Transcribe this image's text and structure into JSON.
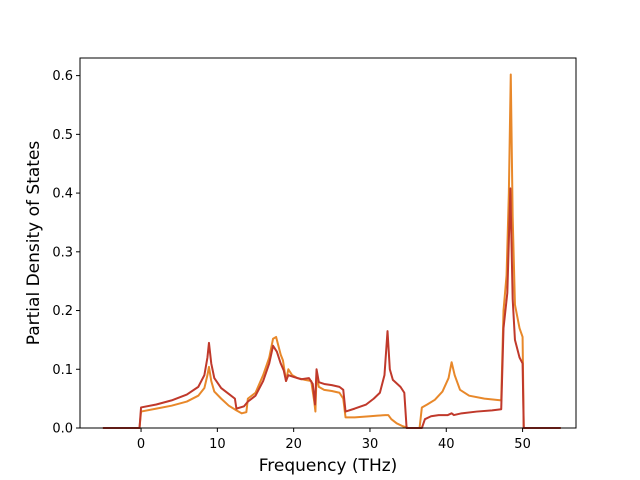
{
  "chart_data": {
    "type": "line",
    "xlabel": "Frequency (THz)",
    "ylabel": "Partial Density of States",
    "xlim": [
      -8,
      57
    ],
    "ylim": [
      0,
      0.63
    ],
    "x_ticks": [
      "0",
      "10",
      "20",
      "30",
      "40",
      "50"
    ],
    "y_ticks": [
      "0.0",
      "0.1",
      "0.2",
      "0.3",
      "0.4",
      "0.5",
      "0.6"
    ],
    "grid": false,
    "legend": false,
    "series": [
      {
        "color": "#e8882a",
        "points": [
          [
            -5,
            0
          ],
          [
            -0.2,
            0
          ],
          [
            0,
            0.028
          ],
          [
            2,
            0.033
          ],
          [
            4,
            0.038
          ],
          [
            6,
            0.045
          ],
          [
            7.5,
            0.055
          ],
          [
            8.3,
            0.068
          ],
          [
            8.7,
            0.09
          ],
          [
            8.9,
            0.104
          ],
          [
            9.2,
            0.08
          ],
          [
            9.6,
            0.062
          ],
          [
            10.5,
            0.05
          ],
          [
            11.5,
            0.038
          ],
          [
            12.5,
            0.03
          ],
          [
            13.2,
            0.025
          ],
          [
            13.8,
            0.027
          ],
          [
            14,
            0.05
          ],
          [
            15,
            0.06
          ],
          [
            16,
            0.09
          ],
          [
            16.8,
            0.12
          ],
          [
            17.3,
            0.152
          ],
          [
            17.7,
            0.155
          ],
          [
            18.3,
            0.125
          ],
          [
            18.6,
            0.115
          ],
          [
            19,
            0.08
          ],
          [
            19.3,
            0.1
          ],
          [
            19.8,
            0.09
          ],
          [
            20.5,
            0.085
          ],
          [
            21.5,
            0.082
          ],
          [
            22.3,
            0.08
          ],
          [
            22.7,
            0.045
          ],
          [
            22.85,
            0.028
          ],
          [
            23,
            0.09
          ],
          [
            23.3,
            0.07
          ],
          [
            24,
            0.065
          ],
          [
            25,
            0.063
          ],
          [
            26,
            0.06
          ],
          [
            26.5,
            0.05
          ],
          [
            26.8,
            0.018
          ],
          [
            28,
            0.018
          ],
          [
            30,
            0.02
          ],
          [
            31,
            0.021
          ],
          [
            32,
            0.022
          ],
          [
            32.4,
            0.022
          ],
          [
            32.8,
            0.015
          ],
          [
            33.5,
            0.008
          ],
          [
            34.3,
            0.003
          ],
          [
            35,
            0
          ],
          [
            36.5,
            0
          ],
          [
            36.8,
            0.035
          ],
          [
            37.5,
            0.04
          ],
          [
            38.5,
            0.048
          ],
          [
            39.5,
            0.062
          ],
          [
            40.3,
            0.085
          ],
          [
            40.7,
            0.112
          ],
          [
            41.1,
            0.09
          ],
          [
            41.8,
            0.065
          ],
          [
            43,
            0.055
          ],
          [
            45,
            0.05
          ],
          [
            47.2,
            0.047
          ],
          [
            47.5,
            0.2
          ],
          [
            47.9,
            0.26
          ],
          [
            48.2,
            0.4
          ],
          [
            48.45,
            0.602
          ],
          [
            48.7,
            0.36
          ],
          [
            49,
            0.21
          ],
          [
            49.6,
            0.17
          ],
          [
            50,
            0.155
          ],
          [
            50.15,
            0
          ],
          [
            52,
            0
          ],
          [
            55,
            0
          ]
        ]
      },
      {
        "color": "#c0392b",
        "points": [
          [
            -5,
            0
          ],
          [
            -0.2,
            0
          ],
          [
            0,
            0.035
          ],
          [
            2,
            0.04
          ],
          [
            4,
            0.047
          ],
          [
            6,
            0.057
          ],
          [
            7.5,
            0.07
          ],
          [
            8.3,
            0.09
          ],
          [
            8.7,
            0.12
          ],
          [
            8.9,
            0.145
          ],
          [
            9.2,
            0.11
          ],
          [
            9.6,
            0.085
          ],
          [
            10.5,
            0.068
          ],
          [
            11.5,
            0.058
          ],
          [
            12.3,
            0.05
          ],
          [
            12.5,
            0.033
          ],
          [
            13.5,
            0.037
          ],
          [
            14,
            0.045
          ],
          [
            15,
            0.055
          ],
          [
            16,
            0.08
          ],
          [
            16.8,
            0.11
          ],
          [
            17.3,
            0.14
          ],
          [
            17.8,
            0.13
          ],
          [
            18.3,
            0.11
          ],
          [
            18.7,
            0.098
          ],
          [
            19,
            0.08
          ],
          [
            19.3,
            0.09
          ],
          [
            20,
            0.087
          ],
          [
            21,
            0.083
          ],
          [
            22,
            0.085
          ],
          [
            22.5,
            0.075
          ],
          [
            22.8,
            0.04
          ],
          [
            23,
            0.1
          ],
          [
            23.3,
            0.078
          ],
          [
            24,
            0.075
          ],
          [
            25,
            0.073
          ],
          [
            26,
            0.07
          ],
          [
            26.5,
            0.065
          ],
          [
            26.8,
            0.028
          ],
          [
            28,
            0.033
          ],
          [
            29.5,
            0.04
          ],
          [
            30.5,
            0.05
          ],
          [
            31.3,
            0.06
          ],
          [
            31.9,
            0.09
          ],
          [
            32.3,
            0.165
          ],
          [
            32.6,
            0.1
          ],
          [
            33,
            0.082
          ],
          [
            34,
            0.07
          ],
          [
            34.5,
            0.06
          ],
          [
            34.8,
            0
          ],
          [
            36.8,
            0
          ],
          [
            37.2,
            0.015
          ],
          [
            38,
            0.02
          ],
          [
            39,
            0.022
          ],
          [
            40.2,
            0.022
          ],
          [
            40.7,
            0.025
          ],
          [
            41,
            0.022
          ],
          [
            42,
            0.025
          ],
          [
            44,
            0.028
          ],
          [
            46,
            0.03
          ],
          [
            47.2,
            0.032
          ],
          [
            47.5,
            0.17
          ],
          [
            48,
            0.23
          ],
          [
            48.4,
            0.408
          ],
          [
            48.7,
            0.22
          ],
          [
            49,
            0.15
          ],
          [
            49.6,
            0.12
          ],
          [
            50,
            0.11
          ],
          [
            50.15,
            0
          ],
          [
            52,
            0
          ],
          [
            55,
            0
          ]
        ]
      }
    ]
  }
}
